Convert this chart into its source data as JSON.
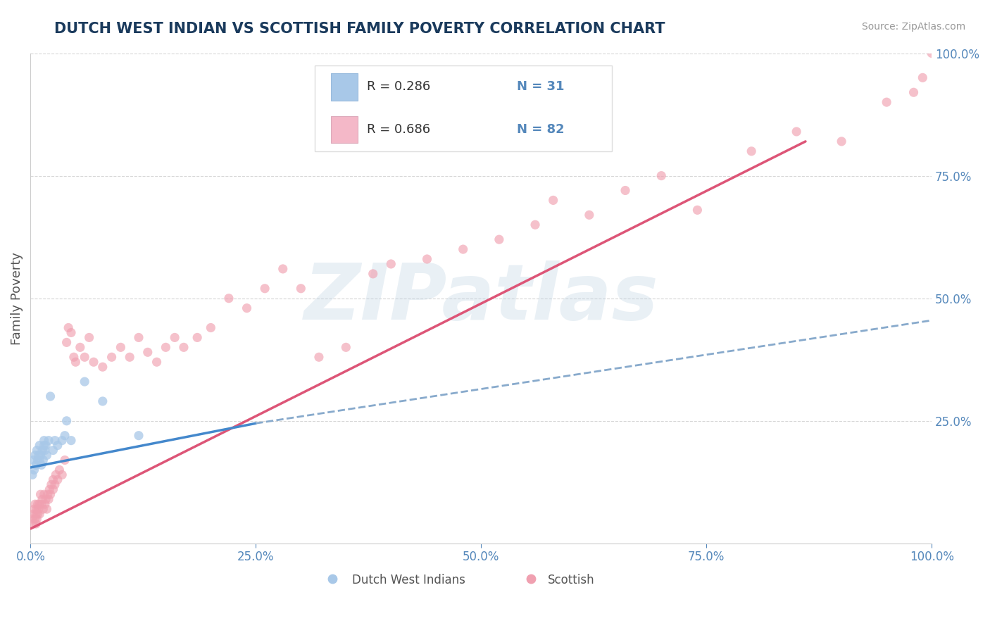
{
  "title": "DUTCH WEST INDIAN VS SCOTTISH FAMILY POVERTY CORRELATION CHART",
  "source": "Source: ZipAtlas.com",
  "ylabel": "Family Poverty",
  "xlim": [
    0,
    1
  ],
  "ylim": [
    0,
    1
  ],
  "xticks": [
    0,
    0.25,
    0.5,
    0.75,
    1.0
  ],
  "yticks": [
    0.25,
    0.5,
    0.75,
    1.0
  ],
  "xticklabels": [
    "0.0%",
    "25.0%",
    "50.0%",
    "75.0%",
    "100.0%"
  ],
  "yticklabels_right": [
    "25.0%",
    "50.0%",
    "75.0%",
    "100.0%"
  ],
  "legend_blue_r": "R = 0.286",
  "legend_blue_n": "N = 31",
  "legend_pink_r": "R = 0.686",
  "legend_pink_n": "N = 82",
  "blue_scatter_color": "#a8c8e8",
  "pink_scatter_color": "#f0a0b0",
  "blue_trend_color": "#4488cc",
  "pink_trend_color": "#dd5577",
  "dashed_line_color": "#88aacc",
  "watermark": "ZIPatlas",
  "title_color": "#1a3a5c",
  "tick_color": "#5588bb",
  "background_color": "#ffffff",
  "legend_blue_patch": "#a8c8e8",
  "legend_pink_patch": "#f4b8c8",
  "blue_trend_x": [
    0.0,
    0.25
  ],
  "blue_trend_y": [
    0.155,
    0.245
  ],
  "pink_trend_x": [
    0.0,
    0.86
  ],
  "pink_trend_y": [
    0.03,
    0.82
  ],
  "dashed_trend_x": [
    0.25,
    1.0
  ],
  "dashed_trend_y": [
    0.245,
    0.455
  ],
  "blue_points_x": [
    0.002,
    0.003,
    0.004,
    0.005,
    0.006,
    0.007,
    0.008,
    0.009,
    0.01,
    0.01,
    0.011,
    0.012,
    0.013,
    0.014,
    0.015,
    0.015,
    0.016,
    0.017,
    0.018,
    0.02,
    0.022,
    0.025,
    0.027,
    0.03,
    0.035,
    0.038,
    0.04,
    0.045,
    0.06,
    0.08,
    0.12
  ],
  "blue_points_y": [
    0.14,
    0.17,
    0.15,
    0.18,
    0.16,
    0.19,
    0.17,
    0.18,
    0.17,
    0.2,
    0.18,
    0.16,
    0.19,
    0.17,
    0.2,
    0.21,
    0.19,
    0.2,
    0.18,
    0.21,
    0.3,
    0.19,
    0.21,
    0.2,
    0.21,
    0.22,
    0.25,
    0.21,
    0.33,
    0.29,
    0.22
  ],
  "pink_points_x": [
    0.002,
    0.003,
    0.003,
    0.004,
    0.005,
    0.005,
    0.006,
    0.006,
    0.007,
    0.007,
    0.008,
    0.008,
    0.009,
    0.01,
    0.01,
    0.011,
    0.012,
    0.013,
    0.014,
    0.015,
    0.016,
    0.017,
    0.018,
    0.019,
    0.02,
    0.021,
    0.022,
    0.023,
    0.025,
    0.025,
    0.027,
    0.028,
    0.03,
    0.032,
    0.035,
    0.038,
    0.04,
    0.042,
    0.045,
    0.048,
    0.05,
    0.055,
    0.06,
    0.065,
    0.07,
    0.08,
    0.09,
    0.1,
    0.11,
    0.12,
    0.13,
    0.14,
    0.15,
    0.16,
    0.17,
    0.185,
    0.2,
    0.22,
    0.24,
    0.26,
    0.28,
    0.3,
    0.32,
    0.35,
    0.38,
    0.4,
    0.44,
    0.48,
    0.52,
    0.56,
    0.58,
    0.62,
    0.66,
    0.7,
    0.74,
    0.8,
    0.85,
    0.9,
    0.95,
    0.98,
    0.99,
    1.0
  ],
  "pink_points_y": [
    0.05,
    0.06,
    0.04,
    0.07,
    0.05,
    0.08,
    0.06,
    0.04,
    0.07,
    0.05,
    0.08,
    0.06,
    0.07,
    0.08,
    0.06,
    0.1,
    0.08,
    0.09,
    0.07,
    0.1,
    0.08,
    0.09,
    0.07,
    0.1,
    0.09,
    0.11,
    0.1,
    0.12,
    0.11,
    0.13,
    0.12,
    0.14,
    0.13,
    0.15,
    0.14,
    0.17,
    0.41,
    0.44,
    0.43,
    0.38,
    0.37,
    0.4,
    0.38,
    0.42,
    0.37,
    0.36,
    0.38,
    0.4,
    0.38,
    0.42,
    0.39,
    0.37,
    0.4,
    0.42,
    0.4,
    0.42,
    0.44,
    0.5,
    0.48,
    0.52,
    0.56,
    0.52,
    0.38,
    0.4,
    0.55,
    0.57,
    0.58,
    0.6,
    0.62,
    0.65,
    0.7,
    0.67,
    0.72,
    0.75,
    0.68,
    0.8,
    0.84,
    0.82,
    0.9,
    0.92,
    0.95,
    1.0
  ]
}
